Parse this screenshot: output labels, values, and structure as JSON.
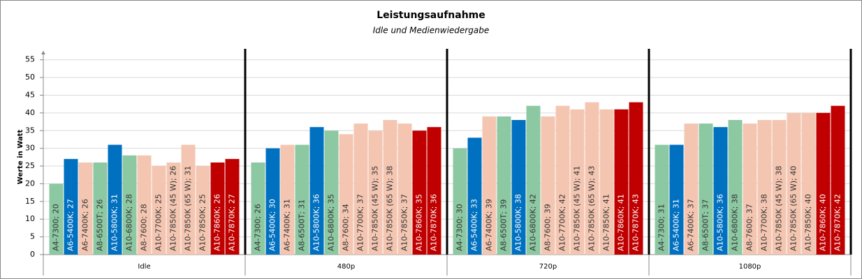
{
  "chart_data": {
    "type": "bar",
    "title": "Leistungsaufnahme",
    "subtitle": "Idle und Medienwiedergabe",
    "y_label": "Werte in Watt",
    "categories": [
      "Idle",
      "480p",
      "720p",
      "1080p"
    ],
    "ylim": [
      0,
      57.5
    ],
    "yticks": [
      0,
      5,
      10,
      15,
      20,
      25,
      30,
      35,
      40,
      45,
      50,
      55
    ],
    "grid": true,
    "series": [
      {
        "color": "#8cc8a2",
        "values": [
          20,
          26,
          30,
          31
        ],
        "value_labels": [
          "A4-7300; 20",
          "A4-7300; 26",
          "A4-7300; 30",
          "A4-7300; 31"
        ]
      },
      {
        "color": "#0070c0",
        "values": [
          27,
          30,
          33,
          31
        ],
        "value_labels": [
          "A6-5400K; 27",
          "A6-5400K; 30",
          "A6-5400K; 33",
          "A6-5400K; 31"
        ]
      },
      {
        "color": "#f4c6b2",
        "values": [
          26,
          31,
          39,
          37
        ],
        "value_labels": [
          "A6-7400K; 26",
          "A6-7400K; 31",
          "A6-7400K; 39",
          "A6-7400K; 37"
        ]
      },
      {
        "color": "#8cc8a2",
        "values": [
          26,
          31,
          39,
          37
        ],
        "value_labels": [
          "A8-6500T; 26",
          "A8-6500T; 31",
          "A8-6500T; 39",
          "A8-6500T; 37"
        ]
      },
      {
        "color": "#0070c0",
        "values": [
          31,
          36,
          38,
          36
        ],
        "value_labels": [
          "A10-5800K; 31",
          "A10-5800K; 36",
          "A10-5800K; 38",
          "A10-5800K; 36"
        ]
      },
      {
        "color": "#8cc8a2",
        "values": [
          28,
          35,
          42,
          38
        ],
        "value_labels": [
          "A10-6800K; 28",
          "A10-6800K; 35",
          "A10-6800K; 42",
          "A10-6800K; 38"
        ]
      },
      {
        "color": "#f4c6b2",
        "values": [
          28,
          34,
          39,
          37
        ],
        "value_labels": [
          "A8-7600; 28",
          "A8-7600; 34",
          "A8-7600; 39",
          "A8-7600; 37"
        ]
      },
      {
        "color": "#f4c6b2",
        "values": [
          25,
          37,
          42,
          38
        ],
        "value_labels": [
          "A10-7700K; 25",
          "A10-7700K; 37",
          "A10-7700K; 42",
          "A10-7700K; 38"
        ]
      },
      {
        "color": "#f4c6b2",
        "values": [
          26,
          35,
          41,
          38
        ],
        "value_labels": [
          "A10-7850K (45 W); 26",
          "A10-7850K (45 W); 35",
          "A10-7850K (45 W); 41",
          "A10-7850K (45 W); 38"
        ]
      },
      {
        "color": "#f4c6b2",
        "values": [
          31,
          38,
          43,
          40
        ],
        "value_labels": [
          "A10-7850K (65 W); 31",
          "A10-7850K (65 W); 38",
          "A10-7850K (65 W); 43",
          "A10-7850K (65 W); 40"
        ]
      },
      {
        "color": "#f4c6b2",
        "values": [
          25,
          37,
          41,
          40
        ],
        "value_labels": [
          "A10-7850K; 25",
          "A10-7850K; 37",
          "A10-7850K; 41",
          "A10-7850K; 40"
        ]
      },
      {
        "color": "#c00000",
        "values": [
          26,
          35,
          41,
          40
        ],
        "value_labels": [
          "A10-7860K; 26",
          "A10-7860K; 35",
          "A10-7860K; 41",
          "A10-7860K; 40"
        ]
      },
      {
        "color": "#c00000",
        "values": [
          27,
          36,
          43,
          42
        ],
        "value_labels": [
          "A10-7870K; 27",
          "A10-7870K; 36",
          "A10-7870K; 43",
          "A10-7870K; 42"
        ]
      }
    ]
  }
}
